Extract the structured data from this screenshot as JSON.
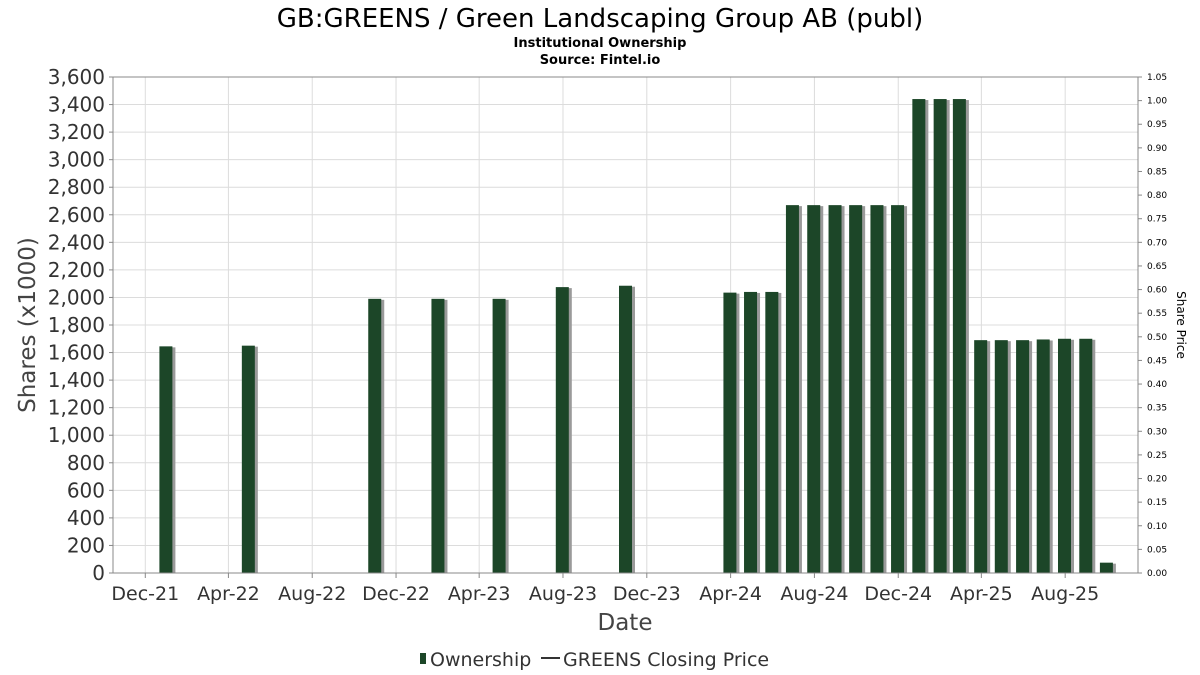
{
  "chart_data": {
    "type": "bar",
    "title": "GB:GREENS / Green Landscaping Group AB (publ)",
    "subtitles": [
      "Institutional Ownership",
      "Source: Fintel.io"
    ],
    "xlabel": "Date",
    "ylabel": "Shares (x1000)",
    "ylabel_right": "Share Price",
    "ylim": [
      0,
      3600
    ],
    "ylim_right": [
      0,
      1.05
    ],
    "yticks": [
      0,
      200,
      400,
      600,
      800,
      1000,
      1200,
      1400,
      1600,
      1800,
      2000,
      2200,
      2400,
      2600,
      2800,
      3000,
      3200,
      3400,
      3600
    ],
    "ytick_labels": [
      "0",
      "200",
      "400",
      "600",
      "800",
      "1,000",
      "1,200",
      "1,400",
      "1,600",
      "1,800",
      "2,000",
      "2,200",
      "2,400",
      "2,600",
      "2,800",
      "3,000",
      "3,200",
      "3,400",
      "3,600"
    ],
    "yticks_right": [
      "0.00",
      "0.05",
      "0.10",
      "0.15",
      "0.20",
      "0.25",
      "0.30",
      "0.35",
      "0.40",
      "0.45",
      "0.50",
      "0.55",
      "0.60",
      "0.65",
      "0.70",
      "0.75",
      "0.80",
      "0.85",
      "0.90",
      "0.95",
      "1.00",
      "1.05"
    ],
    "xtick_labels": [
      "Dec-21",
      "Apr-22",
      "Aug-22",
      "Dec-22",
      "Apr-23",
      "Aug-23",
      "Dec-23",
      "Apr-24",
      "Aug-24",
      "Dec-24",
      "Apr-25",
      "Aug-25"
    ],
    "xtick_dates": [
      "2021-12-01",
      "2022-04-01",
      "2022-08-01",
      "2022-12-01",
      "2023-04-01",
      "2023-08-01",
      "2023-12-01",
      "2024-04-01",
      "2024-08-01",
      "2024-12-01",
      "2025-04-01",
      "2025-08-01"
    ],
    "xlim": [
      "2021-10-15",
      "2025-11-15"
    ],
    "grid": true,
    "legend_position": "bottom-center",
    "series": [
      {
        "name": "Ownership",
        "color": "#1c4628",
        "points": [
          {
            "x": "2021-12-31",
            "y": 1645
          },
          {
            "x": "2022-04-30",
            "y": 1650
          },
          {
            "x": "2022-10-31",
            "y": 1990
          },
          {
            "x": "2023-01-31",
            "y": 1990
          },
          {
            "x": "2023-04-30",
            "y": 1990
          },
          {
            "x": "2023-07-31",
            "y": 2075
          },
          {
            "x": "2023-10-31",
            "y": 2085
          },
          {
            "x": "2024-03-31",
            "y": 2035
          },
          {
            "x": "2024-04-30",
            "y": 2040
          },
          {
            "x": "2024-05-31",
            "y": 2040
          },
          {
            "x": "2024-06-30",
            "y": 2670
          },
          {
            "x": "2024-07-31",
            "y": 2670
          },
          {
            "x": "2024-08-31",
            "y": 2670
          },
          {
            "x": "2024-09-30",
            "y": 2670
          },
          {
            "x": "2024-10-31",
            "y": 2670
          },
          {
            "x": "2024-11-30",
            "y": 2670
          },
          {
            "x": "2024-12-31",
            "y": 3440
          },
          {
            "x": "2025-01-31",
            "y": 3440
          },
          {
            "x": "2025-02-28",
            "y": 3440
          },
          {
            "x": "2025-03-31",
            "y": 1690
          },
          {
            "x": "2025-04-30",
            "y": 1690
          },
          {
            "x": "2025-05-31",
            "y": 1690
          },
          {
            "x": "2025-06-30",
            "y": 1695
          },
          {
            "x": "2025-07-31",
            "y": 1700
          },
          {
            "x": "2025-08-31",
            "y": 1700
          },
          {
            "x": "2025-09-30",
            "y": 75
          }
        ]
      },
      {
        "name": "GREENS Closing Price",
        "color": "#333333",
        "points": []
      }
    ]
  }
}
